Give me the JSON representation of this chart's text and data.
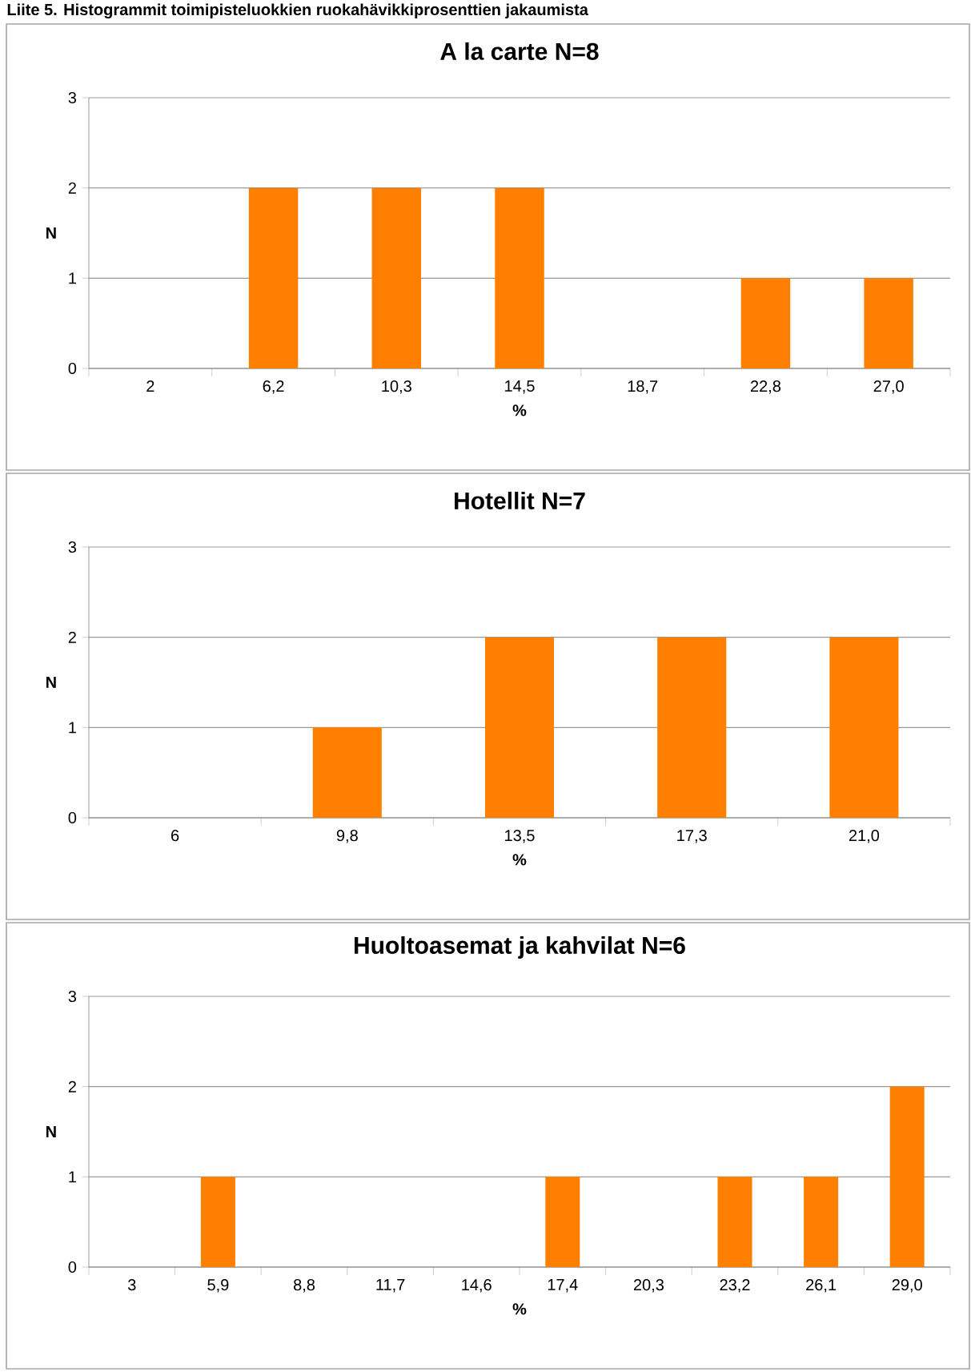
{
  "chart_data": [
    {
      "type": "bar",
      "title": "A la carte N=8",
      "xlabel": "%",
      "ylabel": "N",
      "annotations": [
        "Liite 5. Histogrammit toimipisteluokkien ruokahävikkiprosenttien jakaumista"
      ],
      "categories": [
        "2",
        "6,2",
        "10,3",
        "14,5",
        "18,7",
        "22,8",
        "27,0"
      ],
      "values": [
        0,
        2,
        2,
        2,
        0,
        1,
        1
      ],
      "color": "#ff8000",
      "ylim": [
        0,
        3
      ],
      "yticks": [
        0,
        1,
        2,
        3
      ],
      "grid": "y"
    },
    {
      "type": "bar",
      "title": "Hotellit N=7",
      "xlabel": "%",
      "ylabel": "N",
      "categories": [
        "6",
        "9,8",
        "13,5",
        "17,3",
        "21,0"
      ],
      "values": [
        0,
        1,
        2,
        2,
        2
      ],
      "color": "#ff8000",
      "ylim": [
        0,
        3
      ],
      "yticks": [
        0,
        1,
        2,
        3
      ],
      "grid": "y"
    },
    {
      "type": "bar",
      "title": "Huoltoasemat ja kahvilat N=6",
      "xlabel": "%",
      "ylabel": "N",
      "categories": [
        "3",
        "5,9",
        "8,8",
        "11,7",
        "14,6",
        "17,4",
        "20,3",
        "23,2",
        "26,1",
        "29,0"
      ],
      "values": [
        0,
        1,
        0,
        0,
        0,
        1,
        0,
        1,
        1,
        2
      ],
      "color": "#ff8000",
      "ylim": [
        0,
        3
      ],
      "yticks": [
        0,
        1,
        2,
        3
      ],
      "grid": "y"
    }
  ]
}
